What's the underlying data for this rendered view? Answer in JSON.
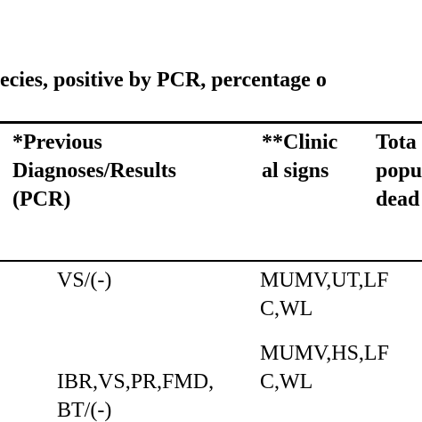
{
  "caption": "ecies, positive by PCR, percentage o",
  "table": {
    "headers": {
      "previous_diagnoses": [
        "*Previous",
        "Diagnoses/Results",
        "(PCR)"
      ],
      "clinical_signs": [
        "**Clinic",
        "al signs"
      ],
      "total": [
        "Tota",
        "popu",
        "dead"
      ]
    },
    "rows": [
      {
        "previous_diagnoses": [
          "VS/(-)"
        ],
        "clinical_signs": [
          "MUMV,UT,LF",
          "C,WL"
        ]
      },
      {
        "previous_diagnoses": [
          "IBR,VS,PR,FMD,",
          "BT/(-)"
        ],
        "clinical_signs": [
          "MUMV,HS,LF",
          "C,WL"
        ]
      }
    ]
  }
}
